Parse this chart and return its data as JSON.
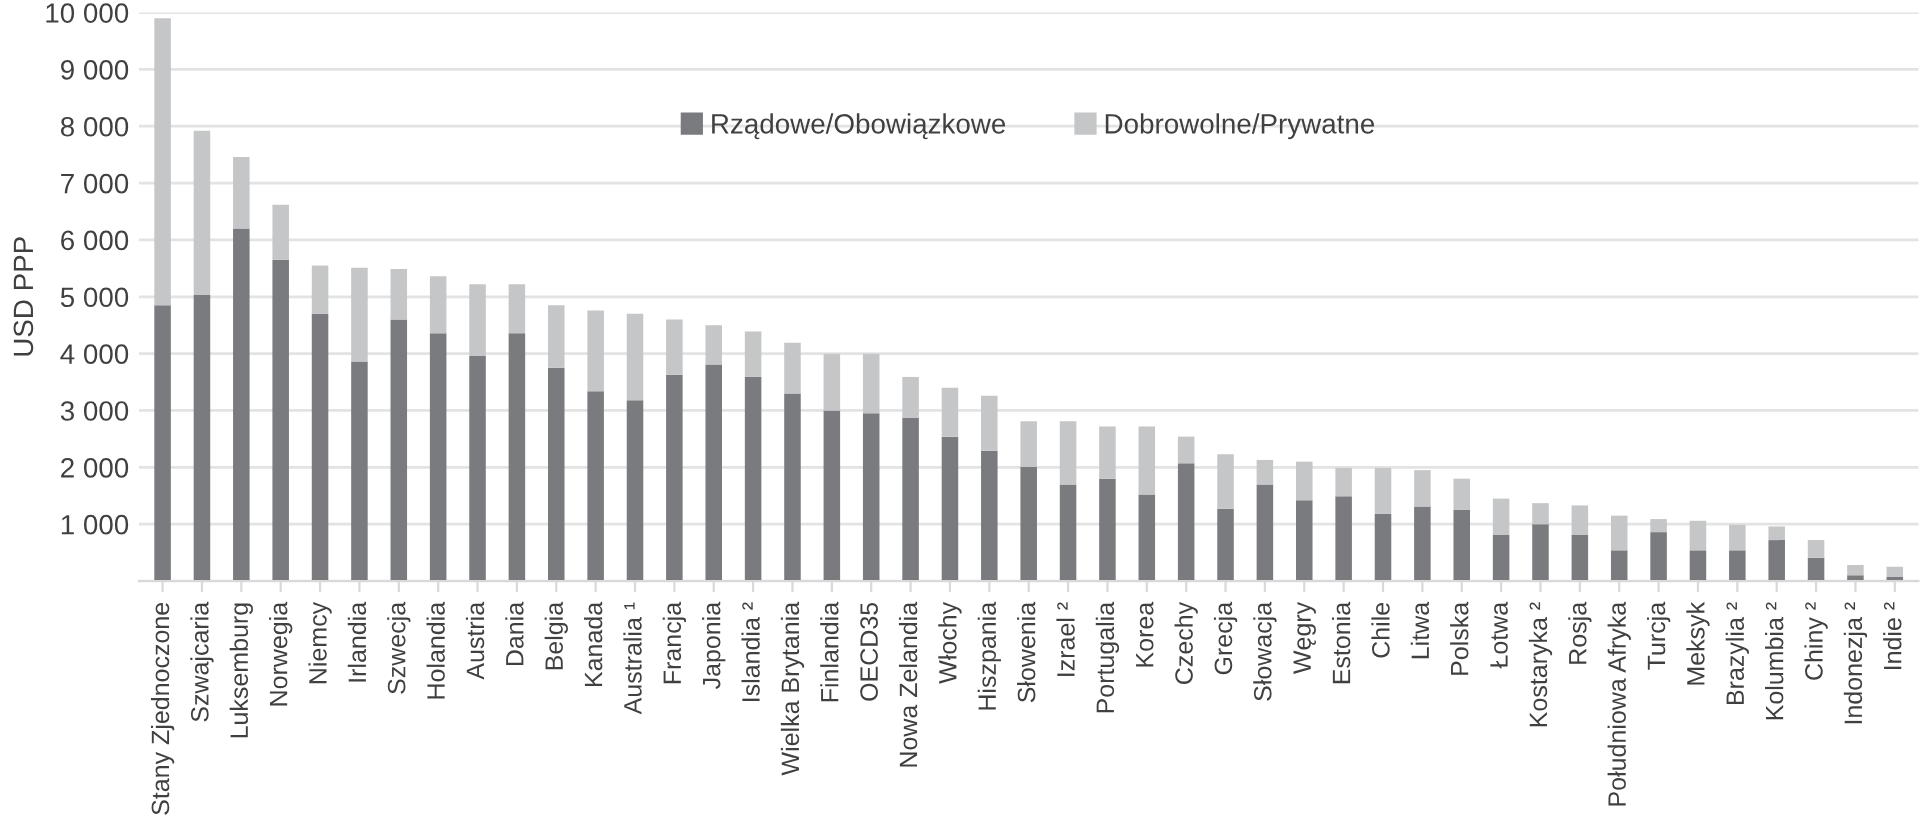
{
  "chart_data": {
    "type": "bar",
    "stacked": true,
    "ylabel": "USD PPP",
    "categories": [
      "Stany Zjednoczone",
      "Szwajcaria",
      "Luksemburg",
      "Norwegia",
      "Niemcy",
      "Irlandia",
      "Szwecja",
      "Holandia",
      "Austria",
      "Dania",
      "Belgia",
      "Kanada",
      "Australia ¹",
      "Francja",
      "Japonia",
      "Islandia ²",
      "Wielka Brytania",
      "Finlandia",
      "OECD35",
      "Nowa Zelandia",
      "Włochy",
      "Hiszpania",
      "Słowenia",
      "Izrael ²",
      "Portugalia",
      "Korea",
      "Czechy",
      "Grecja",
      "Słowacja",
      "Węgry",
      "Estonia",
      "Chile",
      "Litwa",
      "Polska",
      "Łotwa",
      "Kostaryka ²",
      "Rosja",
      "Południowa Afryka",
      "Turcja",
      "Meksyk",
      "Brazylia ²",
      "Kolumbia ²",
      "Chiny ²",
      "Indonezja ²",
      "Indie ²"
    ],
    "series": [
      {
        "name": "Rządowe/Obowiązkowe",
        "color": "#7a7b7f",
        "values": [
          4850,
          5030,
          6200,
          5650,
          4700,
          3860,
          4600,
          4360,
          3960,
          4360,
          3750,
          3340,
          3180,
          3630,
          3810,
          3590,
          3300,
          3000,
          2950,
          2870,
          2540,
          2290,
          2010,
          1700,
          1800,
          1520,
          2070,
          1270,
          1700,
          1420,
          1490,
          1180,
          1310,
          1250,
          810,
          1000,
          810,
          540,
          860,
          540,
          540,
          720,
          410,
          100,
          70
        ]
      },
      {
        "name": "Dobrowolne/Prywatne",
        "color": "#c5c6c8",
        "values": [
          5050,
          2890,
          1260,
          970,
          850,
          1650,
          890,
          1000,
          1260,
          860,
          1100,
          1420,
          1520,
          970,
          690,
          800,
          890,
          1000,
          1050,
          720,
          860,
          970,
          800,
          1110,
          920,
          1200,
          470,
          960,
          430,
          680,
          500,
          810,
          640,
          550,
          640,
          370,
          520,
          610,
          230,
          520,
          450,
          240,
          310,
          180,
          180
        ]
      }
    ],
    "ylim": [
      0,
      10000
    ],
    "yticks": [
      {
        "value": 0,
        "label": null
      },
      {
        "value": 1000,
        "label": "1 000"
      },
      {
        "value": 2000,
        "label": "2 000"
      },
      {
        "value": 3000,
        "label": "3 000"
      },
      {
        "value": 4000,
        "label": "4 000"
      },
      {
        "value": 5000,
        "label": "5 000"
      },
      {
        "value": 6000,
        "label": "6 000"
      },
      {
        "value": 7000,
        "label": "7 000"
      },
      {
        "value": 8000,
        "label": "8 000"
      },
      {
        "value": 9000,
        "label": "9 000"
      },
      {
        "value": 10000,
        "label": "10 000"
      }
    ],
    "grid": "y",
    "legend": "top"
  }
}
